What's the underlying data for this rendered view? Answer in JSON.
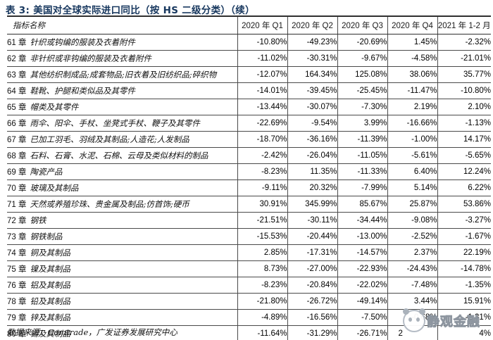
{
  "title": "表 3: 美国对全球实际进口同比（按 HS 二级分类）（续）",
  "table": {
    "header": [
      "指标名称",
      "2020 年 Q1",
      "2020 年 Q2",
      "2020 年 Q3",
      "2020 年 Q4",
      "2021 年 1-2 月"
    ],
    "rows": [
      {
        "chapter": "61 章",
        "name": "针织或钩编的服装及衣着附件",
        "values": [
          "-10.80%",
          "-49.23%",
          "-20.69%",
          "1.45%",
          "-2.32%"
        ]
      },
      {
        "chapter": "62 章",
        "name": "非针织或非钩编的服装及衣着附件",
        "values": [
          "-11.02%",
          "-30.31%",
          "-9.67%",
          "-4.58%",
          "-21.01%"
        ]
      },
      {
        "chapter": "63 章",
        "name": "其他纺织制成品;成套物品;旧衣着及旧纺织品;碎织物",
        "values": [
          "-12.07%",
          "164.34%",
          "125.08%",
          "38.06%",
          "35.77%"
        ]
      },
      {
        "chapter": "64 章",
        "name": "鞋靴、护腿和类似品及其零件",
        "values": [
          "-14.01%",
          "-39.45%",
          "-25.45%",
          "-11.47%",
          "-10.80%"
        ]
      },
      {
        "chapter": "65 章",
        "name": "帽类及其零件",
        "values": [
          "-13.44%",
          "-30.07%",
          "-7.30%",
          "2.19%",
          "2.10%"
        ]
      },
      {
        "chapter": "66 章",
        "name": "雨伞、阳伞、手杖、坐凳式手杖、鞭子及其零件",
        "values": [
          "-22.69%",
          "-9.54%",
          "3.99%",
          "-16.66%",
          "-1.13%"
        ]
      },
      {
        "chapter": "67 章",
        "name": "已加工羽毛、羽绒及其制品;人造花;人发制品",
        "values": [
          "-18.70%",
          "-36.16%",
          "-11.39%",
          "-1.00%",
          "14.17%"
        ]
      },
      {
        "chapter": "68 章",
        "name": "石料、石膏、水泥、石棉、云母及类似材料的制品",
        "values": [
          "-2.42%",
          "-26.04%",
          "-11.05%",
          "-5.61%",
          "-5.65%"
        ]
      },
      {
        "chapter": "69 章",
        "name": "陶瓷产品",
        "values": [
          "-8.23%",
          "11.35%",
          "-11.33%",
          "6.40%",
          "12.24%"
        ]
      },
      {
        "chapter": "70 章",
        "name": "玻璃及其制品",
        "values": [
          "-9.11%",
          "20.32%",
          "-7.99%",
          "5.14%",
          "6.22%"
        ]
      },
      {
        "chapter": "71 章",
        "name": "天然或养殖珍珠、贵金属及制品;仿首饰;硬币",
        "values": [
          "30.91%",
          "345.99%",
          "85.67%",
          "25.87%",
          "53.86%"
        ]
      },
      {
        "chapter": "72 章",
        "name": "钢铁",
        "values": [
          "-21.51%",
          "-30.11%",
          "-34.44%",
          "-9.08%",
          "-3.27%"
        ]
      },
      {
        "chapter": "73 章",
        "name": "钢铁制品",
        "values": [
          "-15.53%",
          "-20.44%",
          "-13.00%",
          "-2.52%",
          "-1.67%"
        ]
      },
      {
        "chapter": "74 章",
        "name": "铜及其制品",
        "values": [
          "2.85%",
          "-17.31%",
          "-14.57%",
          "2.37%",
          "22.19%"
        ]
      },
      {
        "chapter": "75 章",
        "name": "镍及其制品",
        "values": [
          "8.73%",
          "-27.00%",
          "-22.93%",
          "-24.43%",
          "-14.78%"
        ]
      },
      {
        "chapter": "76 章",
        "name": "铝及其制品",
        "values": [
          "-8.23%",
          "-20.84%",
          "-22.02%",
          "-7.48%",
          "-1.35%"
        ]
      },
      {
        "chapter": "78 章",
        "name": "铅及其制品",
        "values": [
          "-21.80%",
          "-26.72%",
          "-49.14%",
          "3.44%",
          "15.91%"
        ]
      },
      {
        "chapter": "79 章",
        "name": "锌及其制品",
        "values": [
          "-4.89%",
          "-16.56%",
          "-7.50%",
          "-0.68%",
          "-1.31%"
        ]
      },
      {
        "chapter": "80 章",
        "name": "锡及其制品",
        "values": [
          "-11.64%",
          "-31.29%",
          "-26.71%",
          "2",
          "4%"
        ],
        "align_left_cells": [
          3
        ]
      }
    ]
  },
  "source": "数据来源：Comtrade，广发证券发展研究中心",
  "watermark": {
    "text": "静观金融",
    "icon": "panda-logo"
  },
  "colors": {
    "title": "#17375e",
    "body_text": "#111111",
    "border": "#2f2f2f",
    "watermark": "#a0a8b2"
  }
}
